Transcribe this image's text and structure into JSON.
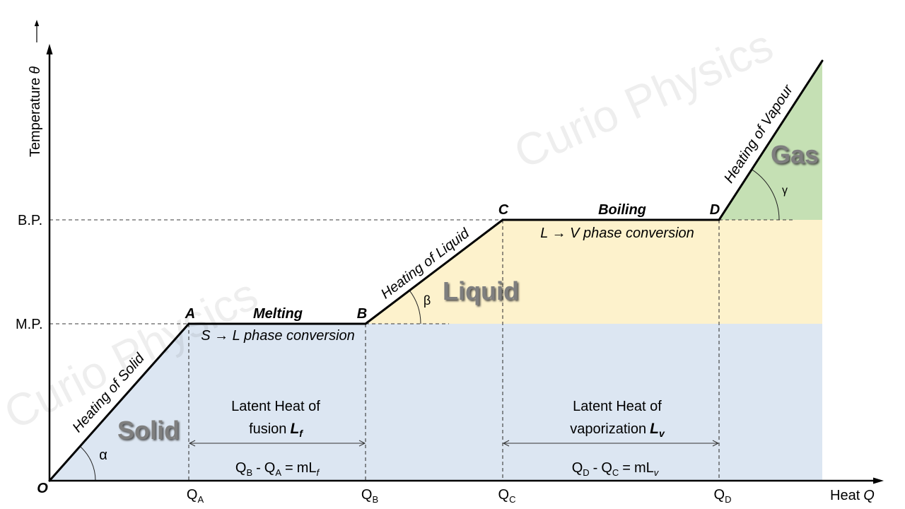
{
  "axes": {
    "origin": "O",
    "y_label": "Temperature",
    "y_symbol": "θ",
    "x_label": "Heat",
    "x_symbol": "Q"
  },
  "levels": {
    "melting_point": "M.P.",
    "boiling_point": "B.P."
  },
  "points": {
    "a": "A",
    "b": "B",
    "c": "C",
    "d": "D"
  },
  "x_ticks": [
    {
      "symbol": "Q",
      "sub": "A"
    },
    {
      "symbol": "Q",
      "sub": "B"
    },
    {
      "symbol": "Q",
      "sub": "C"
    },
    {
      "symbol": "Q",
      "sub": "D"
    }
  ],
  "segments": {
    "heating_solid": "Heating of Solid",
    "melting": "Melting",
    "melting_note": "S → L phase conversion",
    "heating_liquid": "Heating of Liquid",
    "boiling": "Boiling",
    "boiling_note": "L → V phase conversion",
    "heating_vapour": "Heating of Vapour"
  },
  "phases": {
    "solid": "Solid",
    "liquid": "Liquid",
    "gas": "Gas"
  },
  "angles": {
    "alpha": "α",
    "beta": "β",
    "gamma": "γ"
  },
  "latent_heat": {
    "fusion": {
      "line1": "Latent Heat of",
      "line2": "fusion",
      "symbol": "L",
      "symbol_sub": "f",
      "equation": {
        "q1": "Q",
        "q1_sub": "B",
        "op": "-",
        "q2": "Q",
        "q2_sub": "A",
        "eq": "=",
        "coef": "m",
        "l": "L",
        "l_sub": "f"
      }
    },
    "vaporization": {
      "line1": "Latent Heat of",
      "line2": "vaporization",
      "symbol": "L",
      "symbol_sub": "v",
      "equation": {
        "q1": "Q",
        "q1_sub": "D",
        "op": "-",
        "q2": "Q",
        "q2_sub": "C",
        "eq": "=",
        "coef": "m",
        "l": "L",
        "l_sub": "v"
      }
    }
  },
  "watermark": "Curio Physics",
  "colors": {
    "solid_region": "#dce6f2",
    "liquid_region": "#fdf2cc",
    "gas_region": "#c5e0b4",
    "phase_label": "#7f7f7f"
  }
}
